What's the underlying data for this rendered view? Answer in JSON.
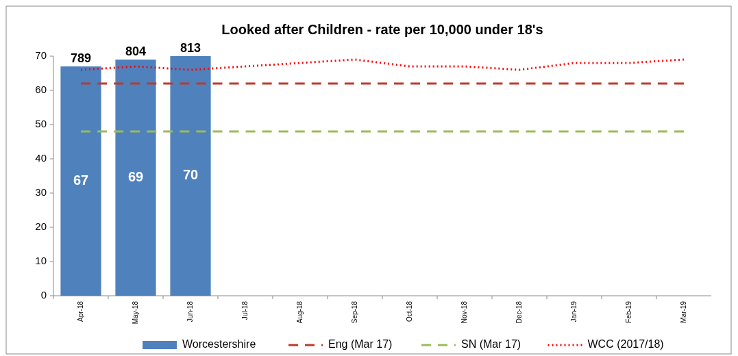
{
  "chart_data": {
    "type": "bar",
    "title": "Looked after Children - rate per 10,000 under 18's",
    "categories": [
      "Apr-18",
      "May-18",
      "Jun-18",
      "Jul-18",
      "Aug-18",
      "Sep-18",
      "Oct-18",
      "Nov-18",
      "Dec-18",
      "Jan-19",
      "Feb-19",
      "Mar-19"
    ],
    "series": [
      {
        "name": "Worcestershire",
        "color": "#4f81bd",
        "values": [
          67,
          69,
          70,
          null,
          null,
          null,
          null,
          null,
          null,
          null,
          null,
          null
        ],
        "value_labels": [
          "67",
          "69",
          "70",
          null,
          null,
          null,
          null,
          null,
          null,
          null,
          null,
          null
        ]
      },
      {
        "name": "Eng (Mar 17)",
        "type": "line",
        "color": "#c0392b",
        "line_style": "dashed",
        "values": [
          62,
          62,
          62,
          62,
          62,
          62,
          62,
          62,
          62,
          62,
          62,
          62
        ]
      },
      {
        "name": "SN (Mar 17)",
        "type": "line",
        "color": "#9bbb59",
        "line_style": "dashed",
        "values": [
          48,
          48,
          48,
          48,
          48,
          48,
          48,
          48,
          48,
          48,
          48,
          48
        ]
      },
      {
        "name": "WCC (2017/18)",
        "type": "line",
        "color": "#ff0000",
        "line_style": "dotted",
        "values": [
          66,
          67,
          66,
          67,
          68,
          69,
          67,
          67,
          66,
          68,
          68,
          69
        ]
      }
    ],
    "annotations": [
      {
        "text": "789",
        "x": "Apr-18",
        "y": 67
      },
      {
        "text": "804",
        "x": "May-18",
        "y": 69
      },
      {
        "text": "813",
        "x": "Jun-18",
        "y": 70
      }
    ],
    "ylim": [
      0,
      70
    ],
    "yticks": [
      0,
      10,
      20,
      30,
      40,
      50,
      60,
      70
    ],
    "legend": "bottom",
    "grid": false
  }
}
